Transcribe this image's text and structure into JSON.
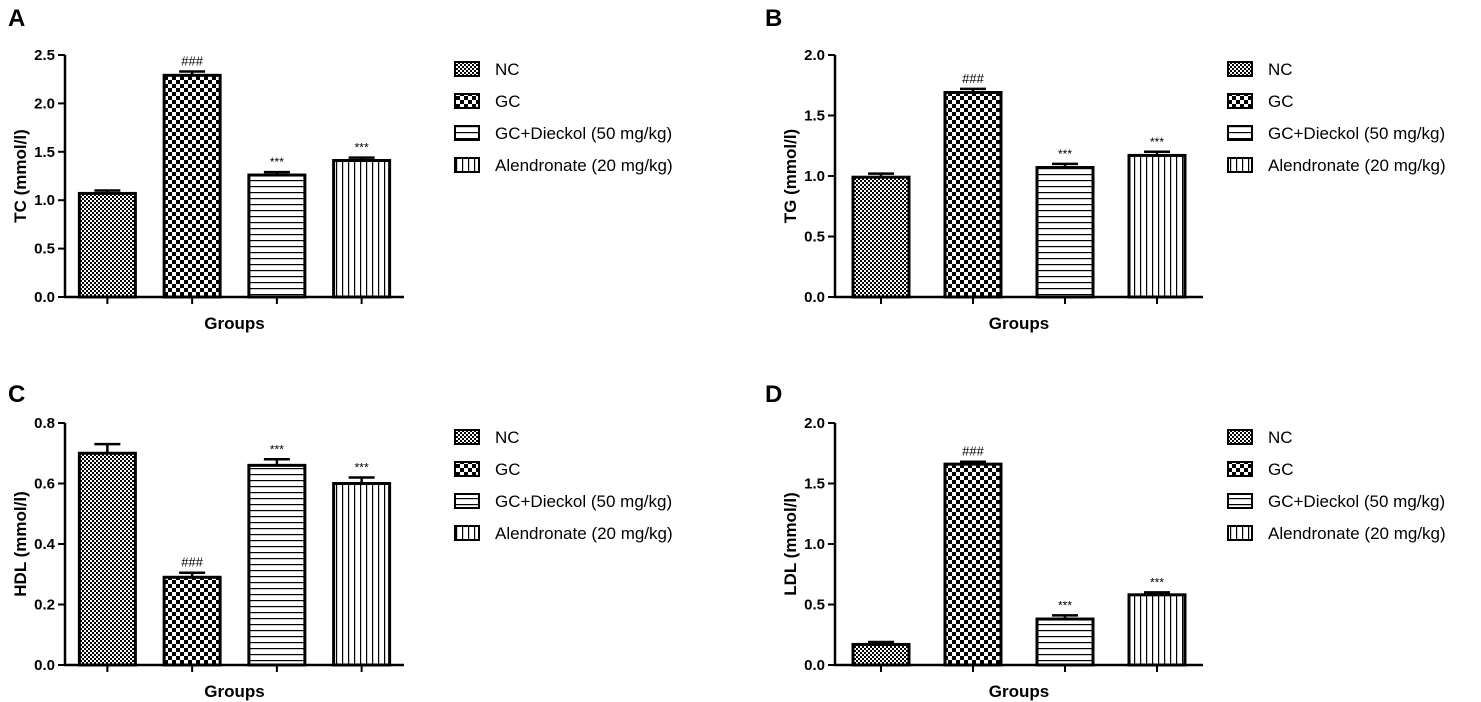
{
  "figure": {
    "legend_title": ""
  },
  "chart_data": [
    {
      "panel": "A",
      "type": "bar",
      "xlabel": "Groups",
      "ylabel": "TC (mmol/l)",
      "ylim": [
        0,
        2.5
      ],
      "yticks": [
        "0.0",
        "0.5",
        "1.0",
        "1.5",
        "2.0",
        "2.5"
      ],
      "ytick_values": [
        0,
        0.5,
        1.0,
        1.5,
        2.0,
        2.5
      ],
      "categories": [
        "NC",
        "GC",
        "GC+Dieckol (50 mg/kg)",
        "Alendronate (20 mg/kg)"
      ],
      "patterns": [
        "fine-check",
        "coarse-check",
        "horizontal",
        "vertical"
      ],
      "values": [
        1.07,
        2.29,
        1.26,
        1.41
      ],
      "errors": [
        0.03,
        0.04,
        0.03,
        0.03
      ],
      "annotations": [
        "",
        "###",
        "***",
        "***"
      ]
    },
    {
      "panel": "B",
      "type": "bar",
      "xlabel": "Groups",
      "ylabel": "TG (mmol/l)",
      "ylim": [
        0,
        2.0
      ],
      "yticks": [
        "0.0",
        "0.5",
        "1.0",
        "1.5",
        "2.0"
      ],
      "ytick_values": [
        0,
        0.5,
        1.0,
        1.5,
        2.0
      ],
      "categories": [
        "NC",
        "GC",
        "GC+Dieckol (50 mg/kg)",
        "Alendronate (20 mg/kg)"
      ],
      "patterns": [
        "fine-check",
        "coarse-check",
        "horizontal",
        "vertical"
      ],
      "values": [
        0.99,
        1.69,
        1.07,
        1.17
      ],
      "errors": [
        0.03,
        0.03,
        0.03,
        0.03
      ],
      "annotations": [
        "",
        "###",
        "***",
        "***"
      ]
    },
    {
      "panel": "C",
      "type": "bar",
      "xlabel": "Groups",
      "ylabel": "HDL (mmol/l)",
      "ylim": [
        0,
        0.8
      ],
      "yticks": [
        "0.0",
        "0.2",
        "0.4",
        "0.6",
        "0.8"
      ],
      "ytick_values": [
        0,
        0.2,
        0.4,
        0.6,
        0.8
      ],
      "categories": [
        "NC",
        "GC",
        "GC+Dieckol (50 mg/kg)",
        "Alendronate (20 mg/kg)"
      ],
      "patterns": [
        "fine-check",
        "coarse-check",
        "horizontal",
        "vertical"
      ],
      "values": [
        0.7,
        0.29,
        0.66,
        0.6
      ],
      "errors": [
        0.03,
        0.015,
        0.02,
        0.02
      ],
      "annotations": [
        "",
        "###",
        "***",
        "***"
      ]
    },
    {
      "panel": "D",
      "type": "bar",
      "xlabel": "Groups",
      "ylabel": "LDL (mmol/l)",
      "ylim": [
        0,
        2.0
      ],
      "yticks": [
        "0.0",
        "0.5",
        "1.0",
        "1.5",
        "2.0"
      ],
      "ytick_values": [
        0,
        0.5,
        1.0,
        1.5,
        2.0
      ],
      "categories": [
        "NC",
        "GC",
        "GC+Dieckol (50 mg/kg)",
        "Alendronate (20 mg/kg)"
      ],
      "patterns": [
        "fine-check",
        "coarse-check",
        "horizontal",
        "vertical"
      ],
      "values": [
        0.17,
        1.66,
        0.38,
        0.58
      ],
      "errors": [
        0.02,
        0.02,
        0.03,
        0.02
      ],
      "annotations": [
        "",
        "###",
        "***",
        "***"
      ]
    }
  ]
}
